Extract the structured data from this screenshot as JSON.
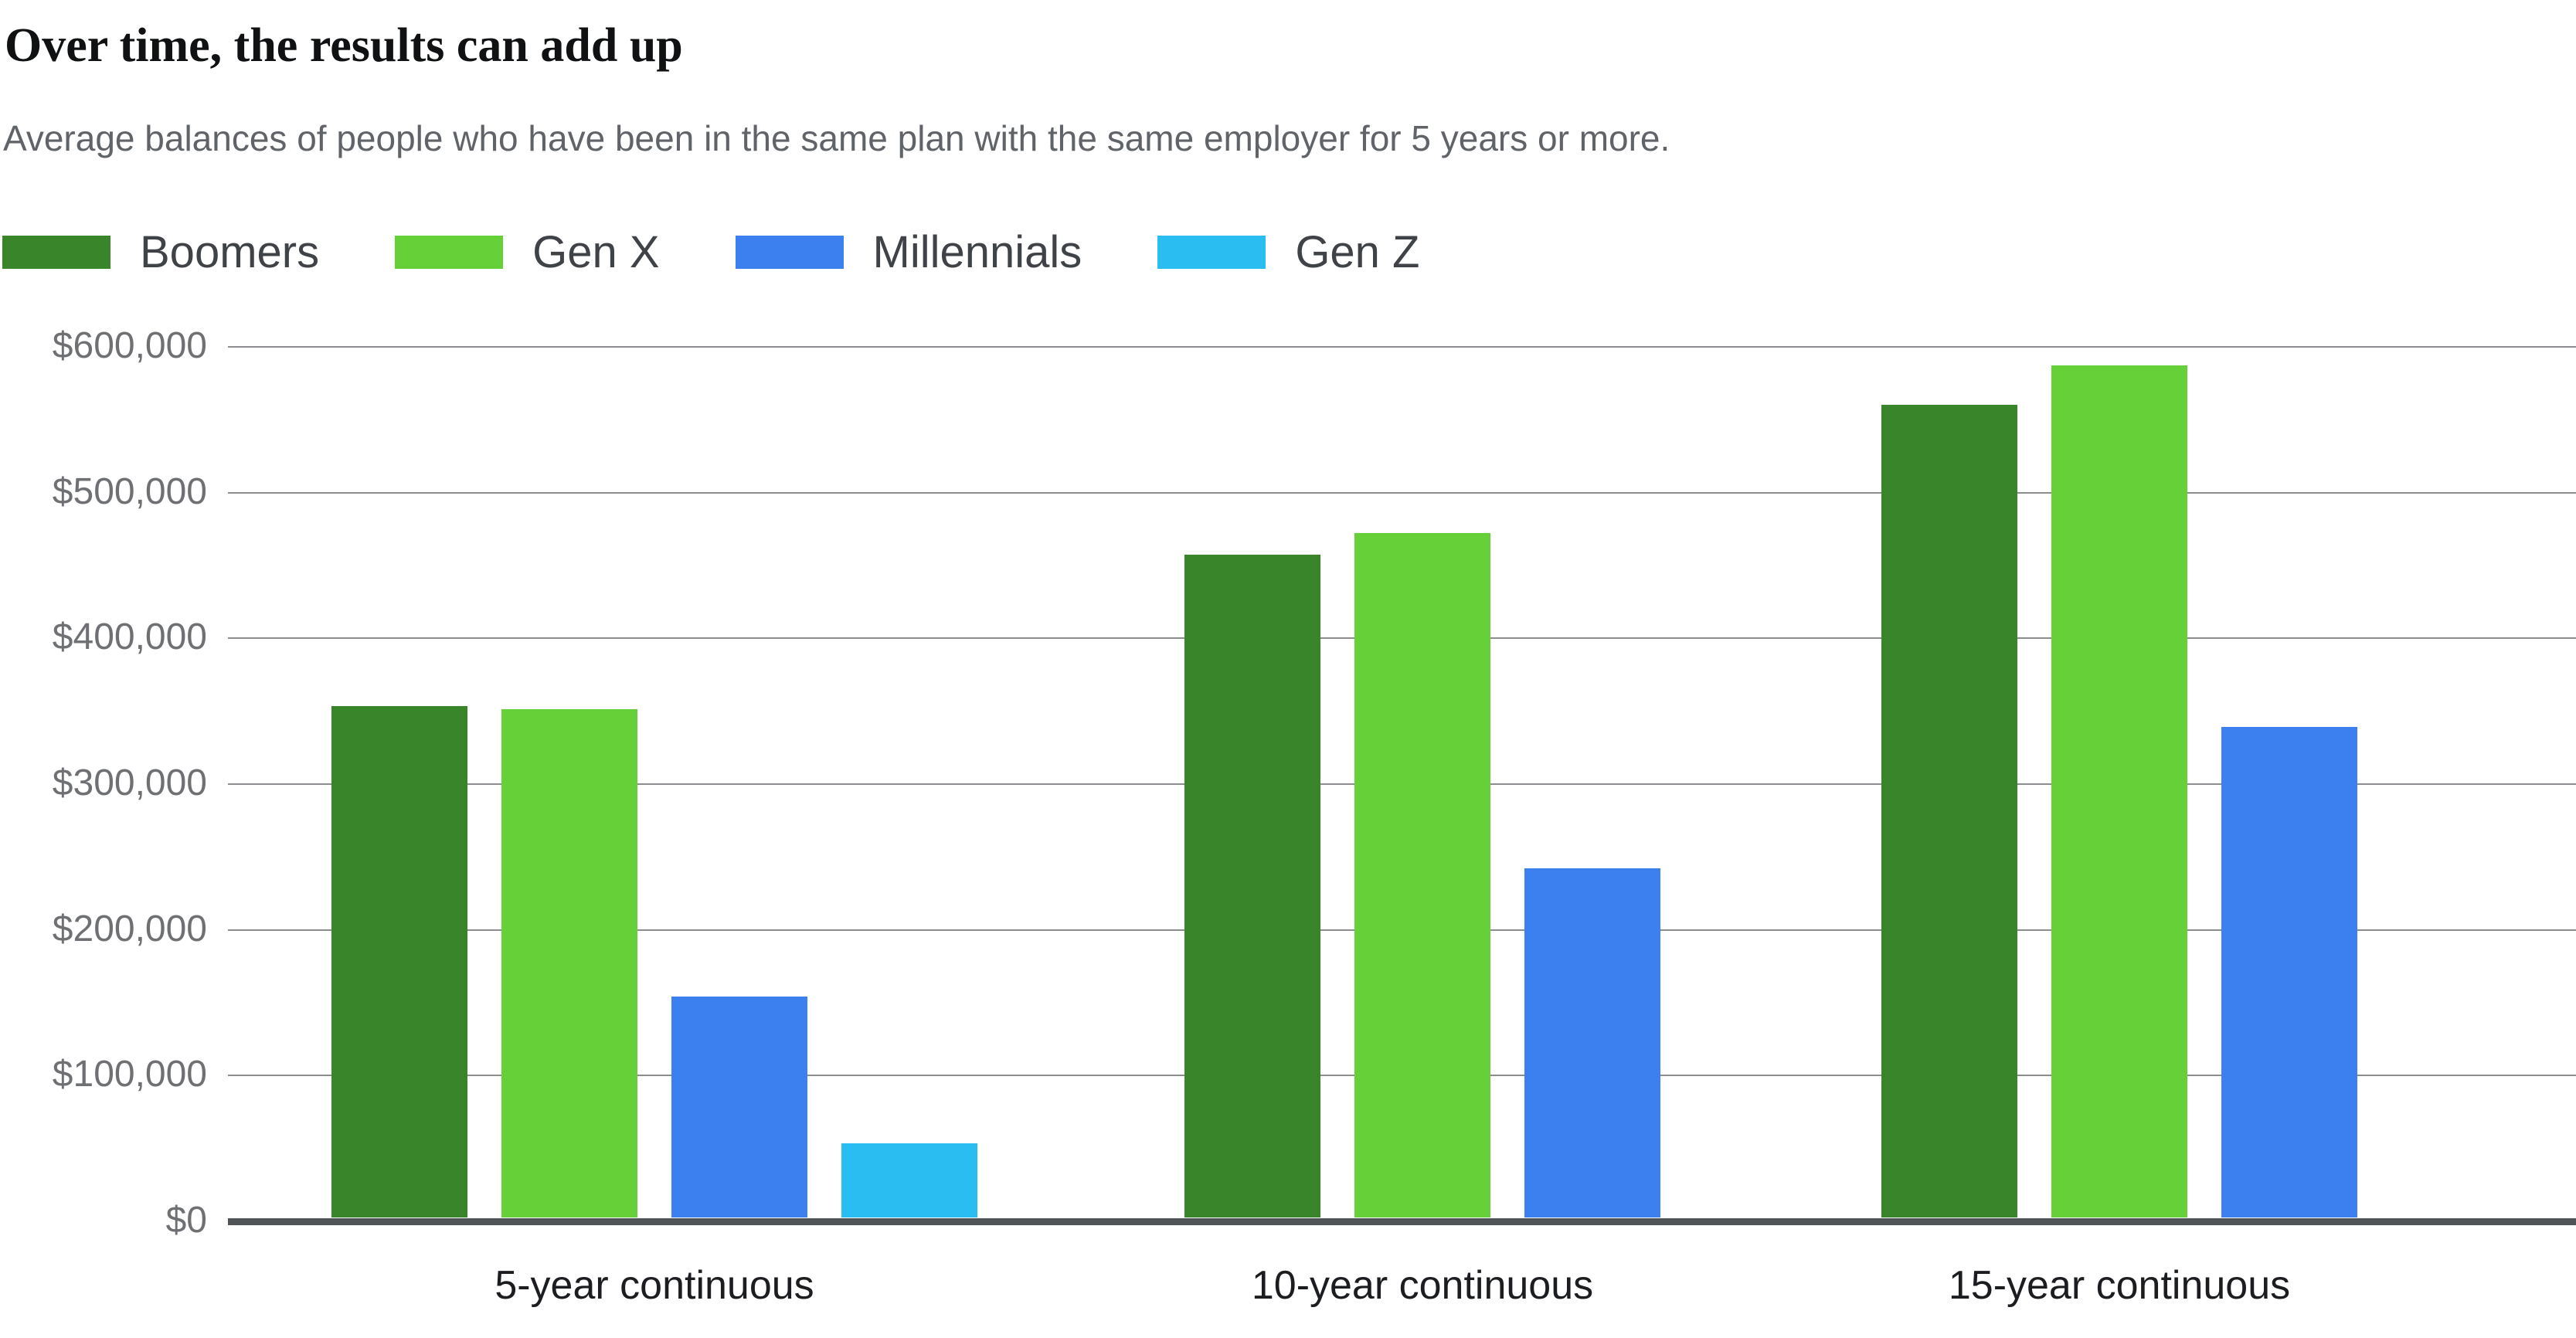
{
  "chart_data": {
    "type": "bar",
    "title": "Over time, the results can add up",
    "subtitle": "Average balances of people who have been in the same plan with the same employer for 5 years or more.",
    "categories": [
      "5-year continuous",
      "10-year continuous",
      "15-year continuous"
    ],
    "series": [
      {
        "name": "Boomers",
        "color": "#38852a",
        "values": [
          351000,
          455000,
          558000
        ]
      },
      {
        "name": "Gen X",
        "color": "#66d039",
        "values": [
          349000,
          470000,
          585000
        ]
      },
      {
        "name": "Millennials",
        "color": "#3c80f0",
        "values": [
          152000,
          240000,
          337000
        ]
      },
      {
        "name": "Gen Z",
        "color": "#29bdf2",
        "values": [
          51000,
          null,
          null
        ]
      }
    ],
    "xlabel": "",
    "ylabel": "",
    "ylim": [
      0,
      600000
    ],
    "yticks": [
      {
        "value": 600000,
        "label": "$600,000"
      },
      {
        "value": 500000,
        "label": "$500,000"
      },
      {
        "value": 400000,
        "label": "$400,000"
      },
      {
        "value": 300000,
        "label": "$300,000"
      },
      {
        "value": 200000,
        "label": "$200,000"
      },
      {
        "value": 100000,
        "label": "$100,000"
      },
      {
        "value": 0,
        "label": "$0"
      }
    ],
    "grid": "horizontal",
    "legend_position": "top-left",
    "colors": {
      "gridline": "#8b8d90",
      "axis": "#515457",
      "tick_text": "#6e7073",
      "category_text": "#1b1d20",
      "legend_text": "#3f4246",
      "title_text": "#101112",
      "subtitle_text": "#606468",
      "background": "#ffffff"
    }
  }
}
